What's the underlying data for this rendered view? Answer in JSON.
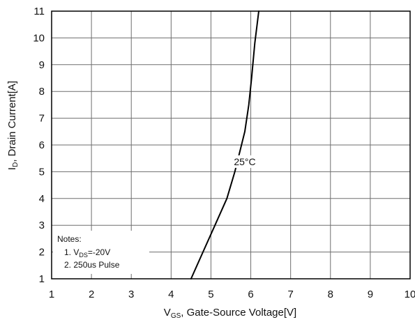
{
  "chart_data": {
    "type": "line",
    "title": "",
    "xlabel": {
      "main": "V",
      "sub": "GS",
      "rest": ", Gate-Source Voltage[V]"
    },
    "ylabel": {
      "main": "I",
      "sub": "D",
      "rest": ", Drain Current[A]"
    },
    "xlim": [
      1,
      10
    ],
    "ylim": [
      1,
      11
    ],
    "x_ticks": [
      1,
      2,
      3,
      4,
      5,
      6,
      7,
      8,
      9,
      10
    ],
    "y_ticks": [
      1,
      2,
      3,
      4,
      5,
      6,
      7,
      8,
      9,
      10,
      11
    ],
    "grid": true,
    "series": [
      {
        "name": "25°C",
        "x": [
          4.5,
          4.8,
          5.1,
          5.4,
          5.6,
          5.75,
          5.85,
          5.95,
          6.02,
          6.1,
          6.2
        ],
        "y": [
          1.0,
          2.0,
          3.0,
          4.0,
          5.0,
          5.9,
          6.5,
          7.5,
          8.5,
          9.8,
          11.0
        ]
      }
    ],
    "curve_label": {
      "text": "25°C",
      "at_x": 5.85,
      "at_y": 5.3
    },
    "notes": {
      "title": "Notes:",
      "line1": {
        "prefix": "1. V",
        "sub": "DS",
        "suffix": "=-20V"
      },
      "line2": "2. 250us Pulse"
    },
    "colors": {
      "grid": "#6e6e6e",
      "curve": "#000000",
      "frame": "#000000"
    }
  }
}
